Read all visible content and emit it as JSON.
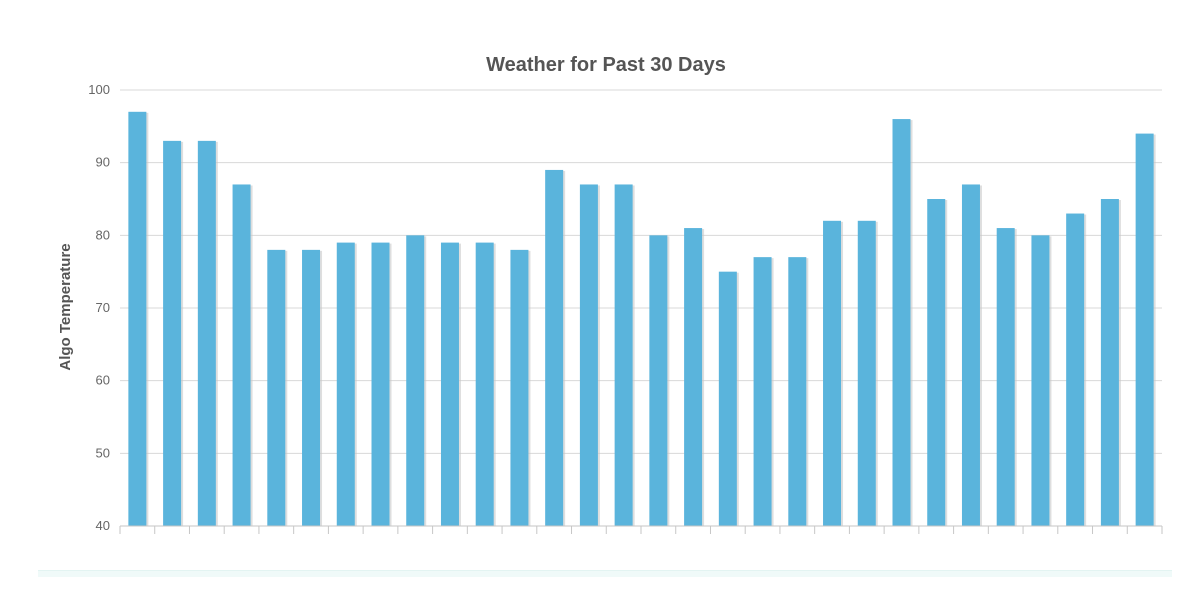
{
  "chart_data": {
    "type": "bar",
    "title": "Weather for Past 30 Days",
    "xlabel": "",
    "ylabel": "Algo Temperature",
    "ylim": [
      40,
      100
    ],
    "yticks": [
      40,
      50,
      60,
      70,
      80,
      90,
      100
    ],
    "grid": true,
    "legend": "none",
    "values": [
      97,
      93,
      93,
      87,
      78,
      78,
      79,
      79,
      80,
      79,
      79,
      78,
      89,
      87,
      87,
      80,
      81,
      75,
      77,
      77,
      82,
      82,
      96,
      85,
      87,
      81,
      80,
      83,
      85,
      94
    ]
  },
  "colors": {
    "bar": "#5ab4dc",
    "bar_shadow": "#c8c8c8",
    "title": "#555555",
    "grid": "#d8d8d8"
  }
}
